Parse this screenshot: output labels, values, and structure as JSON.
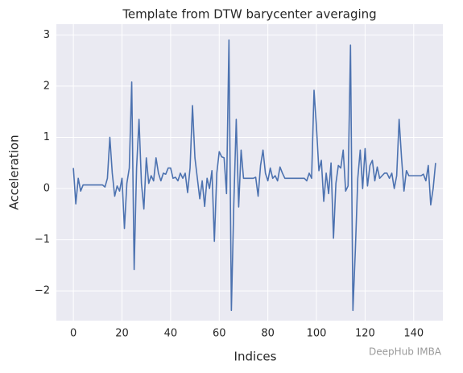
{
  "chart_data": {
    "type": "line",
    "title": "Template from DTW barycenter averaging",
    "x_label": "Indices",
    "y_label": "Acceleration",
    "annotation": "DeepHub IMBA",
    "x": [
      0,
      1,
      2,
      3,
      4,
      5,
      6,
      7,
      8,
      9,
      10,
      11,
      12,
      13,
      14,
      15,
      16,
      17,
      18,
      19,
      20,
      21,
      22,
      23,
      24,
      25,
      26,
      27,
      28,
      29,
      30,
      31,
      32,
      33,
      34,
      35,
      36,
      37,
      38,
      39,
      40,
      41,
      42,
      43,
      44,
      45,
      46,
      47,
      48,
      49,
      50,
      51,
      52,
      53,
      54,
      55,
      56,
      57,
      58,
      59,
      60,
      61,
      62,
      63,
      64,
      65,
      66,
      67,
      68,
      69,
      70,
      71,
      72,
      73,
      74,
      75,
      76,
      77,
      78,
      79,
      80,
      81,
      82,
      83,
      84,
      85,
      86,
      87,
      88,
      89,
      90,
      91,
      92,
      93,
      94,
      95,
      96,
      97,
      98,
      99,
      100,
      101,
      102,
      103,
      104,
      105,
      106,
      107,
      108,
      109,
      110,
      111,
      112,
      113,
      114,
      115,
      116,
      117,
      118,
      119,
      120,
      121,
      122,
      123,
      124,
      125,
      126,
      127,
      128,
      129,
      130,
      131,
      132,
      133,
      134,
      135,
      136,
      137,
      138,
      139,
      140,
      141,
      142,
      143,
      144,
      145,
      146,
      147,
      148,
      149
    ],
    "series": [
      {
        "name": "Template",
        "color": "#4c72b0",
        "values": [
          0.4,
          -0.3,
          0.2,
          -0.05,
          0.07,
          0.07,
          0.07,
          0.07,
          0.07,
          0.07,
          0.07,
          0.07,
          0.07,
          0.03,
          0.2,
          1.0,
          0.3,
          -0.15,
          0.05,
          -0.05,
          0.2,
          -0.78,
          0.1,
          0.4,
          2.08,
          -1.58,
          0.4,
          1.35,
          0.1,
          -0.4,
          0.6,
          0.1,
          0.25,
          0.15,
          0.6,
          0.3,
          0.15,
          0.3,
          0.28,
          0.4,
          0.4,
          0.2,
          0.22,
          0.15,
          0.3,
          0.2,
          0.3,
          -0.08,
          0.4,
          1.62,
          0.6,
          0.2,
          -0.2,
          0.15,
          -0.35,
          0.2,
          0.0,
          0.35,
          -1.03,
          0.3,
          0.72,
          0.62,
          0.6,
          -0.1,
          2.9,
          -2.38,
          -0.3,
          1.35,
          -0.36,
          0.75,
          0.2,
          0.2,
          0.2,
          0.2,
          0.2,
          0.22,
          -0.15,
          0.45,
          0.75,
          0.3,
          0.15,
          0.4,
          0.2,
          0.25,
          0.15,
          0.42,
          0.3,
          0.2,
          0.2,
          0.2,
          0.2,
          0.2,
          0.2,
          0.2,
          0.2,
          0.2,
          0.15,
          0.3,
          0.2,
          1.92,
          1.2,
          0.35,
          0.55,
          -0.25,
          0.3,
          -0.1,
          0.5,
          -0.97,
          0.1,
          0.45,
          0.4,
          0.75,
          -0.05,
          0.05,
          2.8,
          -2.38,
          -1.2,
          0.2,
          0.75,
          0.0,
          0.78,
          0.05,
          0.45,
          0.55,
          0.15,
          0.42,
          0.2,
          0.25,
          0.3,
          0.3,
          0.2,
          0.3,
          0.0,
          0.25,
          1.35,
          0.6,
          -0.05,
          0.35,
          0.25,
          0.25,
          0.25,
          0.25,
          0.25,
          0.25,
          0.28,
          0.15,
          0.45,
          -0.32,
          0.0,
          0.5
        ]
      }
    ],
    "xlim": [
      -7,
      152
    ],
    "ylim": [
      -2.58,
      3.21
    ],
    "xticks": [
      0,
      20,
      40,
      60,
      80,
      100,
      120,
      140
    ],
    "yticks": [
      {
        "value": -2,
        "label": "−2"
      },
      {
        "value": -1,
        "label": "−1"
      },
      0,
      1,
      2,
      3
    ],
    "grid": true,
    "background": "#eaeaf2"
  }
}
